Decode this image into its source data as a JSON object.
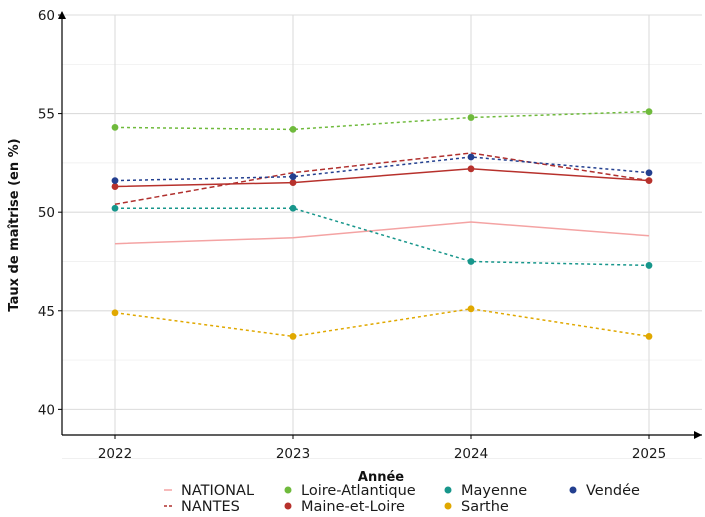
{
  "chart_data": {
    "type": "line",
    "xlabel": "Année",
    "ylabel": "Taux de maîtrise (en %)",
    "x": [
      "2022",
      "2023",
      "2024",
      "2025"
    ],
    "ylim": [
      38.7,
      60
    ],
    "yticks": [
      40,
      45,
      50,
      55,
      60
    ],
    "grid": true,
    "legend_position": "bottom",
    "series": [
      {
        "name": "NATIONAL",
        "values": [
          48.4,
          48.7,
          49.5,
          48.8
        ],
        "color": "#f4a3a3",
        "line": "solid",
        "points": false
      },
      {
        "name": "NANTES",
        "values": [
          50.4,
          52.0,
          53.0,
          51.6
        ],
        "color": "#b0302e",
        "line": "dashed",
        "points": false
      },
      {
        "name": "Loire-Atlantique",
        "values": [
          54.3,
          54.2,
          54.8,
          55.1
        ],
        "color": "#6fba3c",
        "line": "dotted",
        "points": true
      },
      {
        "name": "Maine-et-Loire",
        "values": [
          51.3,
          51.5,
          52.2,
          51.6
        ],
        "color": "#b7312c",
        "line": "solid",
        "points": true
      },
      {
        "name": "Mayenne",
        "values": [
          50.2,
          50.2,
          47.5,
          47.3
        ],
        "color": "#17968b",
        "line": "dotted",
        "points": true
      },
      {
        "name": "Sarthe",
        "values": [
          44.9,
          43.7,
          45.1,
          43.7
        ],
        "color": "#e0a800",
        "line": "dotted",
        "points": true
      },
      {
        "name": "Vendée",
        "values": [
          51.6,
          51.8,
          52.8,
          52.0
        ],
        "color": "#233f8f",
        "line": "dotted",
        "points": true
      }
    ]
  }
}
